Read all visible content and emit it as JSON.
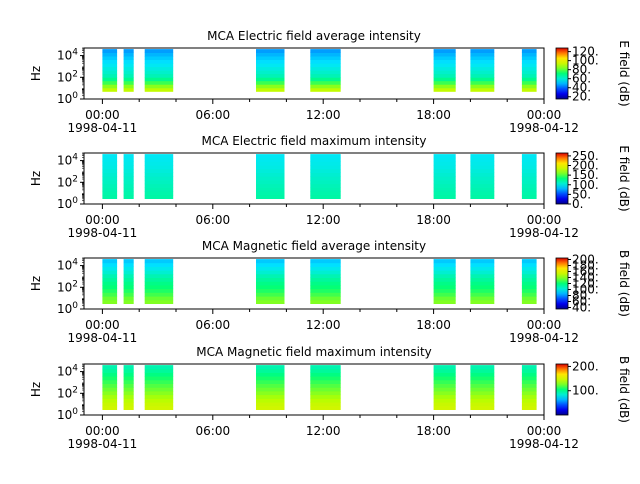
{
  "chart_data": [
    {
      "type": "heatmap",
      "title": "MCA  Electric field average intensity",
      "ylabel": "Hz",
      "colorbar_label": "E field (dB)",
      "colorbar_ticks": [
        "120.",
        "100.",
        "80.",
        "60.",
        "40.",
        "20."
      ],
      "colorbar_range": [
        15,
        128
      ],
      "x_ticks": [
        {
          "time": "00:00",
          "date": "1998-04-11"
        },
        {
          "time": "06:00",
          "date": ""
        },
        {
          "time": "12:00",
          "date": ""
        },
        {
          "time": "18:00",
          "date": ""
        },
        {
          "time": "00:00",
          "date": "1998-04-12"
        }
      ],
      "xlim_hours": [
        -1,
        24
      ],
      "y_ticks": [
        "10^0",
        "10^2",
        "10^4"
      ],
      "ylim_log10": [
        0,
        4.7
      ],
      "data_range_log10": [
        0.7,
        4.6
      ],
      "intervals_hours": [
        [
          0,
          0.8
        ],
        [
          1.15,
          1.7
        ],
        [
          2.3,
          3.85
        ],
        [
          8.35,
          9.9
        ],
        [
          11.3,
          12.95
        ],
        [
          18.0,
          19.2
        ],
        [
          20.0,
          21.3
        ],
        [
          22.8,
          23.6
        ]
      ],
      "spectrum_profile_db": [
        [
          0.7,
          95
        ],
        [
          1.3,
          82
        ],
        [
          2.0,
          65
        ],
        [
          3.0,
          57
        ],
        [
          4.0,
          50
        ],
        [
          4.6,
          45
        ]
      ]
    },
    {
      "type": "heatmap",
      "title": "MCA  Electric field maximum intensity",
      "ylabel": "Hz",
      "colorbar_label": "E field (dB)",
      "colorbar_ticks": [
        "250.",
        "200.",
        "150.",
        "100.",
        "50.",
        "0."
      ],
      "colorbar_range": [
        0,
        265
      ],
      "x_ticks": [
        {
          "time": "00:00",
          "date": "1998-04-11"
        },
        {
          "time": "06:00",
          "date": ""
        },
        {
          "time": "12:00",
          "date": ""
        },
        {
          "time": "18:00",
          "date": ""
        },
        {
          "time": "00:00",
          "date": "1998-04-12"
        }
      ],
      "xlim_hours": [
        -1,
        24
      ],
      "y_ticks": [
        "10^0",
        "10^2",
        "10^4"
      ],
      "ylim_log10": [
        0,
        4.7
      ],
      "data_range_log10": [
        0.5,
        4.6
      ],
      "intervals_hours": [
        [
          0,
          0.8
        ],
        [
          1.15,
          1.7
        ],
        [
          2.3,
          3.85
        ],
        [
          8.35,
          9.9
        ],
        [
          11.3,
          12.95
        ],
        [
          18.0,
          19.2
        ],
        [
          20.0,
          21.3
        ],
        [
          22.8,
          23.6
        ]
      ],
      "spectrum_profile_db": [
        [
          0.5,
          120
        ],
        [
          1.5,
          115
        ],
        [
          2.5,
          108
        ],
        [
          3.5,
          100
        ],
        [
          4.6,
          95
        ]
      ]
    },
    {
      "type": "heatmap",
      "title": "MCA  Magnetic field average intensity",
      "ylabel": "Hz",
      "colorbar_label": "B field (dB)",
      "colorbar_ticks": [
        "200.",
        "180.",
        "160.",
        "140.",
        "120.",
        "100.",
        "80.",
        "60.",
        "40."
      ],
      "colorbar_range": [
        35,
        205
      ],
      "x_ticks": [
        {
          "time": "00:00",
          "date": "1998-04-11"
        },
        {
          "time": "06:00",
          "date": ""
        },
        {
          "time": "12:00",
          "date": ""
        },
        {
          "time": "18:00",
          "date": ""
        },
        {
          "time": "00:00",
          "date": "1998-04-12"
        }
      ],
      "xlim_hours": [
        -1,
        24
      ],
      "y_ticks": [
        "10^0",
        "10^2",
        "10^4"
      ],
      "ylim_log10": [
        0,
        4.7
      ],
      "data_range_log10": [
        0.5,
        4.6
      ],
      "intervals_hours": [
        [
          0,
          0.8
        ],
        [
          1.15,
          1.7
        ],
        [
          2.3,
          3.85
        ],
        [
          8.35,
          9.9
        ],
        [
          11.3,
          12.95
        ],
        [
          18.0,
          19.2
        ],
        [
          20.0,
          21.3
        ],
        [
          22.8,
          23.6
        ]
      ],
      "spectrum_profile_db": [
        [
          0.5,
          140
        ],
        [
          1.0,
          135
        ],
        [
          1.6,
          125
        ],
        [
          2.3,
          118
        ],
        [
          3.0,
          110
        ],
        [
          3.6,
          100
        ],
        [
          4.2,
          92
        ],
        [
          4.6,
          88
        ]
      ]
    },
    {
      "type": "heatmap",
      "title": "MCA  Magnetic field maximum intensity",
      "ylabel": "Hz",
      "colorbar_label": "B field (dB)",
      "colorbar_ticks": [
        "200.",
        "100."
      ],
      "colorbar_range": [
        0,
        210
      ],
      "x_ticks": [
        {
          "time": "00:00",
          "date": "1998-04-11"
        },
        {
          "time": "06:00",
          "date": ""
        },
        {
          "time": "12:00",
          "date": ""
        },
        {
          "time": "18:00",
          "date": ""
        },
        {
          "time": "00:00",
          "date": "1998-04-12"
        }
      ],
      "xlim_hours": [
        -1,
        24
      ],
      "y_ticks": [
        "10^0",
        "10^2",
        "10^4"
      ],
      "ylim_log10": [
        0,
        4.7
      ],
      "data_range_log10": [
        0.5,
        4.6
      ],
      "intervals_hours": [
        [
          0,
          0.8
        ],
        [
          1.15,
          1.7
        ],
        [
          2.3,
          3.85
        ],
        [
          8.35,
          9.9
        ],
        [
          11.3,
          12.95
        ],
        [
          18.0,
          19.2
        ],
        [
          20.0,
          21.3
        ],
        [
          22.8,
          23.6
        ]
      ],
      "spectrum_profile_db": [
        [
          0.5,
          150
        ],
        [
          1.0,
          145
        ],
        [
          1.6,
          135
        ],
        [
          2.3,
          125
        ],
        [
          3.0,
          115
        ],
        [
          3.6,
          105
        ],
        [
          4.2,
          95
        ],
        [
          4.6,
          90
        ]
      ]
    }
  ]
}
